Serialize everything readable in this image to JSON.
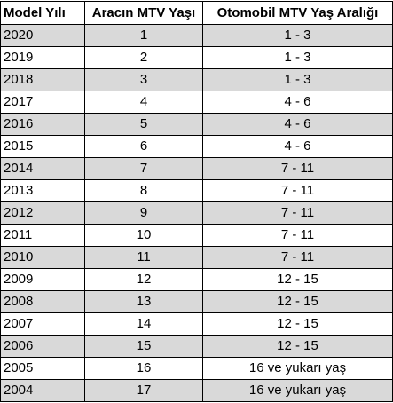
{
  "table": {
    "header": [
      "Model Yılı",
      "Aracın MTV Yaşı",
      "Otomobil MTV Yaş Aralığı"
    ],
    "rows": [
      [
        "2020",
        "1",
        "1 - 3"
      ],
      [
        "2019",
        "2",
        "1 - 3"
      ],
      [
        "2018",
        "3",
        "1 - 3"
      ],
      [
        "2017",
        "4",
        "4 - 6"
      ],
      [
        "2016",
        "5",
        "4 - 6"
      ],
      [
        "2015",
        "6",
        "4 - 6"
      ],
      [
        "2014",
        "7",
        "7 - 11"
      ],
      [
        "2013",
        "8",
        "7 - 11"
      ],
      [
        "2012",
        "9",
        "7 - 11"
      ],
      [
        "2011",
        "10",
        "7 - 11"
      ],
      [
        "2010",
        "11",
        "7 - 11"
      ],
      [
        "2009",
        "12",
        "12 - 15"
      ],
      [
        "2008",
        "13",
        "12 - 15"
      ],
      [
        "2007",
        "14",
        "12 - 15"
      ],
      [
        "2006",
        "15",
        "12 - 15"
      ],
      [
        "2005",
        "16",
        "16 ve yukarı yaş"
      ],
      [
        "2004",
        "17",
        "16 ve yukarı yaş"
      ]
    ]
  }
}
